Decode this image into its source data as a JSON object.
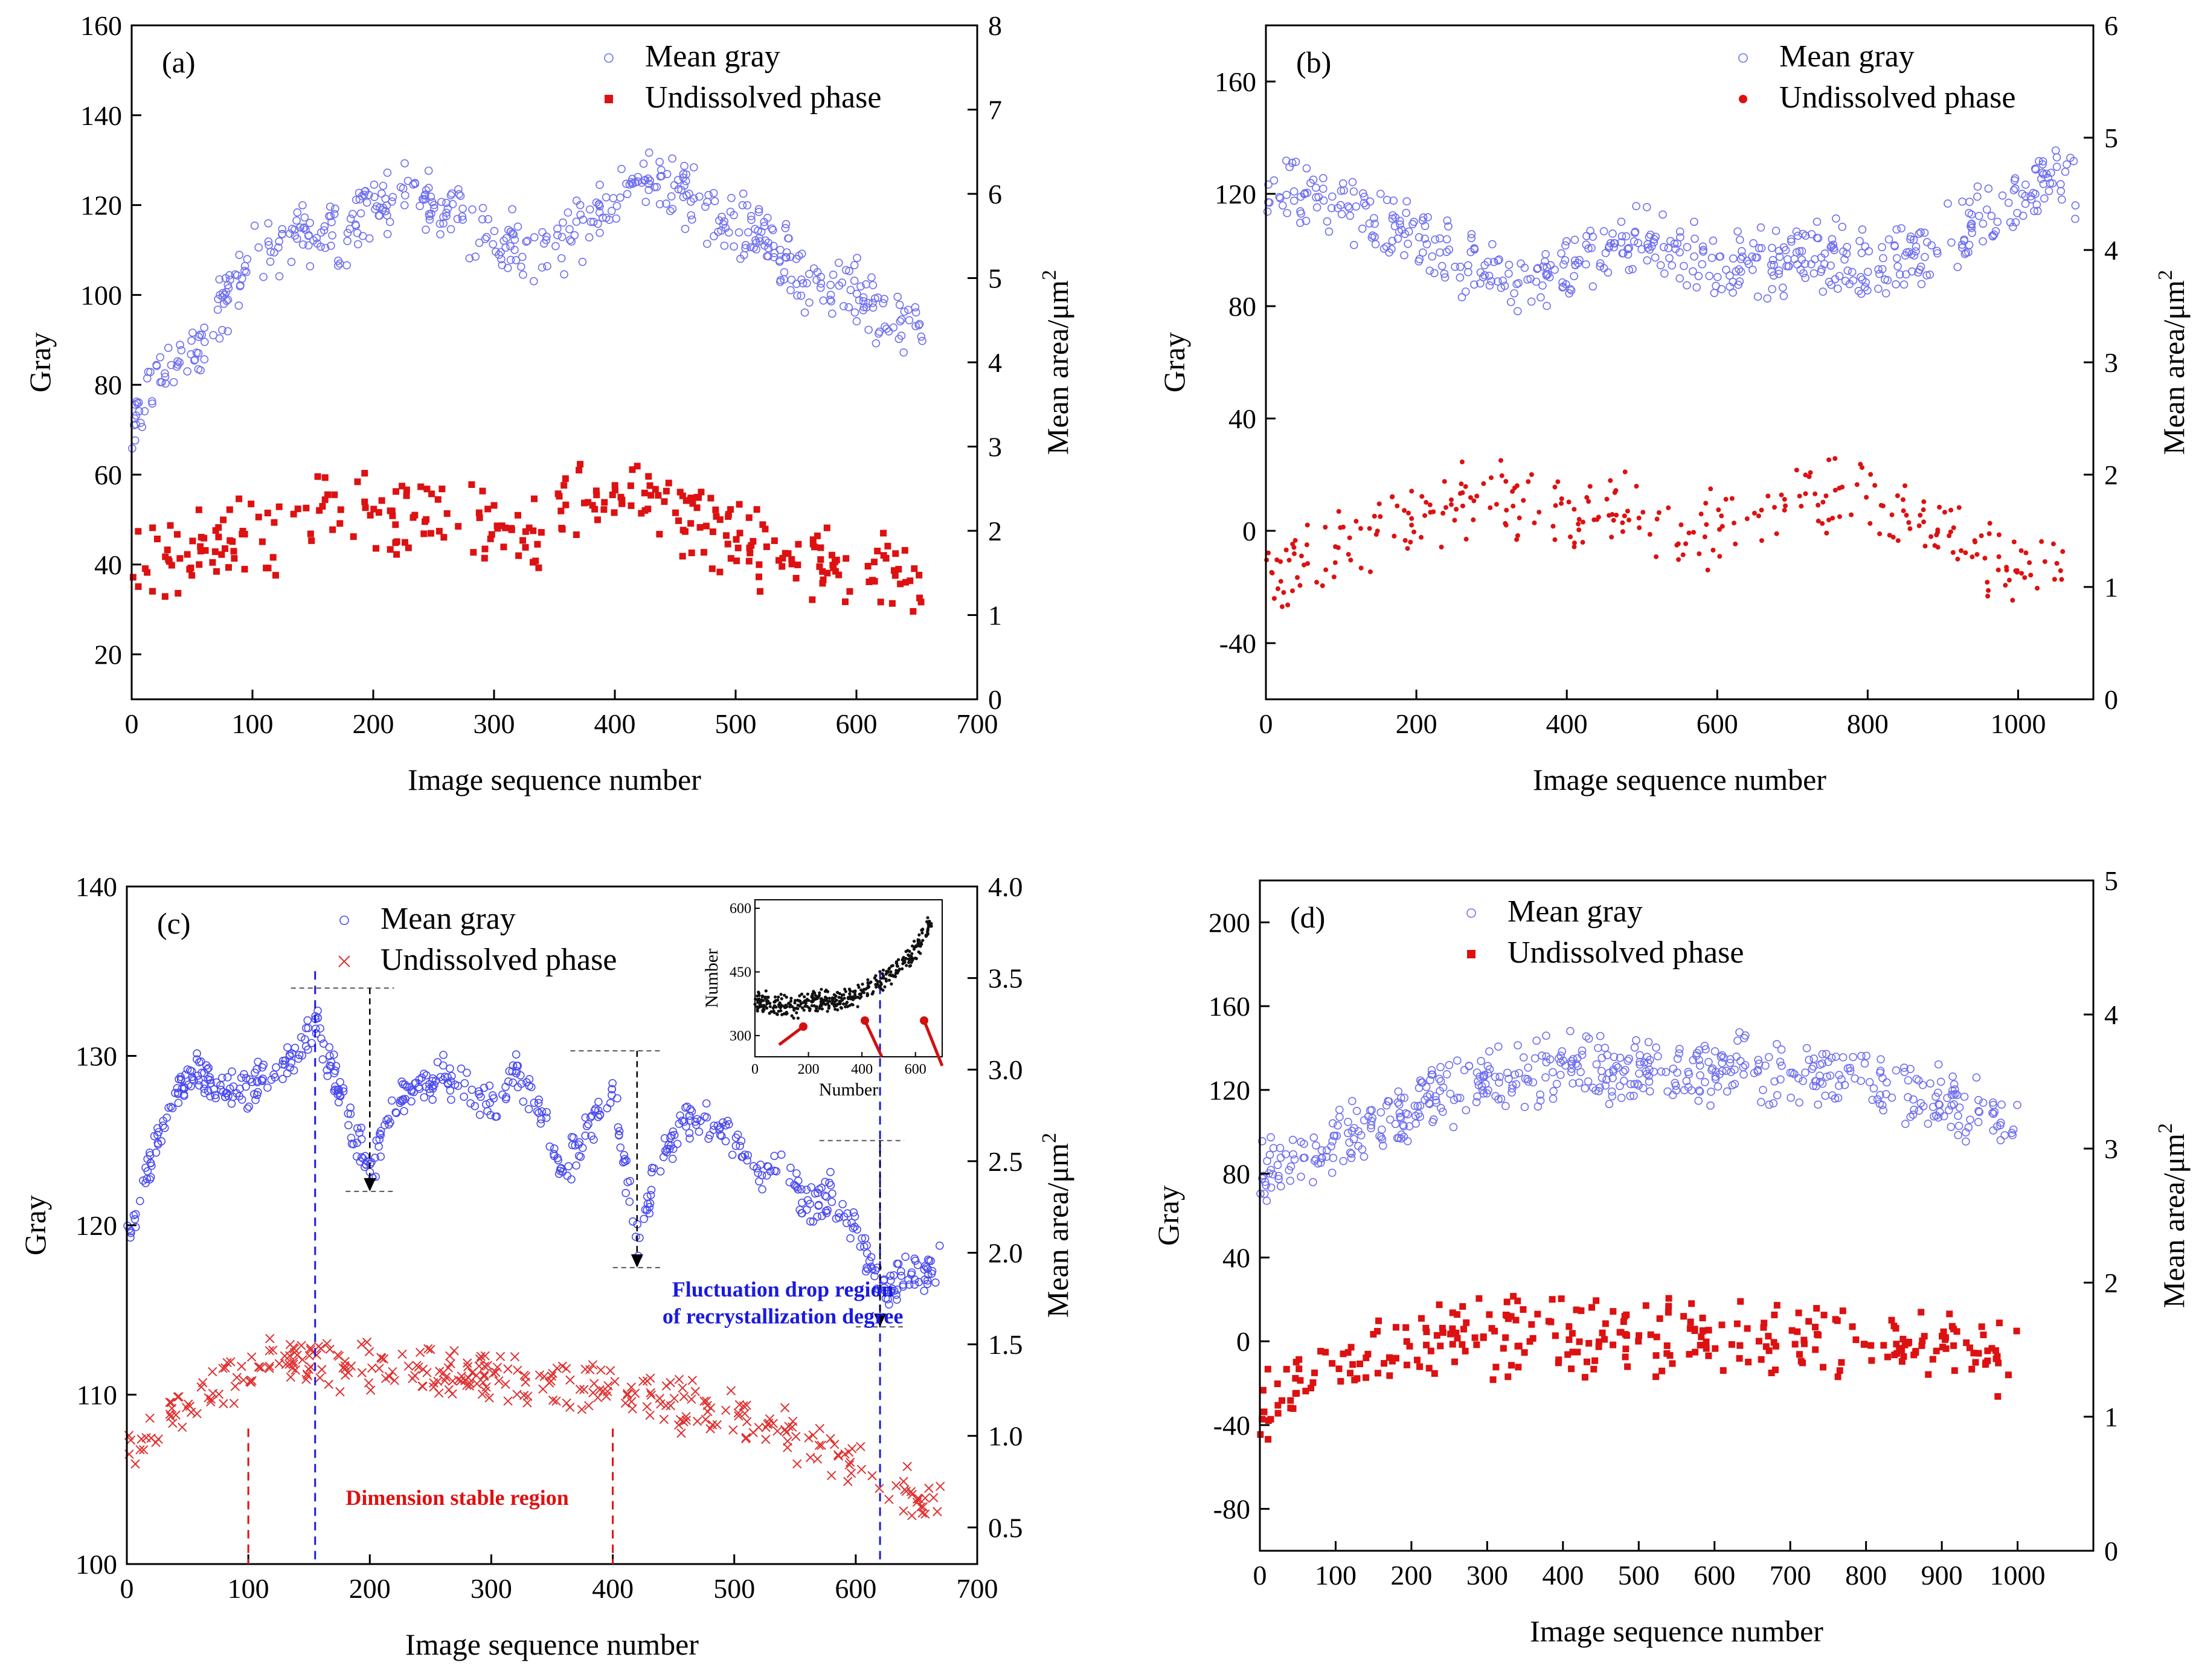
{
  "chart_data": [
    {
      "id": "a",
      "type": "scatter",
      "tag": "(a)",
      "xlabel": "Image sequence number",
      "ylabel": "Gray",
      "y2label": "Mean area/μm",
      "y2label_sup": "2",
      "xlim": [
        0,
        700
      ],
      "ylim": [
        10,
        160
      ],
      "y2lim": [
        0,
        8
      ],
      "xticks": [
        "0",
        "100",
        "200",
        "300",
        "400",
        "500",
        "600",
        "700"
      ],
      "yticks": [
        "20",
        "40",
        "60",
        "80",
        "100",
        "120",
        "140",
        "160"
      ],
      "y2ticks": [
        "0",
        "1",
        "2",
        "3",
        "4",
        "5",
        "6",
        "7",
        "8"
      ],
      "legend": [
        "Mean gray",
        "Undissolved phase"
      ],
      "series": [
        {
          "name": "Mean gray",
          "axis": "left",
          "color": "#6f6ff0",
          "marker": "circle",
          "x": [
            0,
            20,
            40,
            60,
            80,
            100,
            120,
            140,
            160,
            180,
            200,
            220,
            240,
            260,
            280,
            300,
            320,
            340,
            360,
            380,
            400,
            420,
            440,
            460,
            480,
            500,
            520,
            540,
            560,
            580,
            600,
            620,
            640,
            655
          ],
          "y": [
            74,
            80,
            86,
            92,
            100,
            108,
            112,
            114,
            112,
            115,
            118,
            124,
            122,
            120,
            116,
            112,
            110,
            110,
            112,
            116,
            122,
            126,
            126,
            122,
            118,
            116,
            114,
            108,
            104,
            102,
            100,
            96,
            92,
            90
          ]
        },
        {
          "name": "Undissolved phase",
          "axis": "right",
          "color": "#dd1111",
          "marker": "square",
          "x": [
            0,
            20,
            40,
            60,
            80,
            100,
            120,
            140,
            160,
            180,
            200,
            220,
            240,
            260,
            280,
            300,
            320,
            340,
            360,
            380,
            400,
            420,
            440,
            460,
            480,
            500,
            520,
            540,
            560,
            580,
            600,
            620,
            640,
            655
          ],
          "y": [
            1.7,
            1.6,
            1.7,
            1.8,
            1.8,
            1.9,
            2.0,
            2.2,
            2.3,
            2.3,
            2.2,
            2.2,
            2.1,
            2.2,
            2.1,
            2.0,
            2.0,
            2.1,
            2.2,
            2.4,
            2.5,
            2.4,
            2.3,
            2.1,
            2.0,
            1.9,
            1.8,
            1.7,
            1.7,
            1.6,
            1.5,
            1.5,
            1.5,
            1.4
          ]
        }
      ]
    },
    {
      "id": "b",
      "type": "scatter",
      "tag": "(b)",
      "xlabel": "Image sequence number",
      "ylabel": "Gray",
      "y2label": "Mean area/μm",
      "y2label_sup": "2",
      "xlim": [
        0,
        1100
      ],
      "ylim": [
        -60,
        180
      ],
      "y2lim": [
        0,
        6
      ],
      "xticks": [
        "0",
        "200",
        "400",
        "600",
        "800",
        "1000"
      ],
      "yticks": [
        "-40",
        "0",
        "40",
        "80",
        "120",
        "160"
      ],
      "y2ticks": [
        "0",
        "1",
        "2",
        "3",
        "4",
        "5",
        "6"
      ],
      "legend": [
        "Mean gray",
        "Undissolved phase"
      ],
      "series": [
        {
          "name": "Mean gray",
          "axis": "left",
          "color": "#6f6ff0",
          "marker": "circle",
          "x": [
            0,
            40,
            80,
            120,
            160,
            200,
            240,
            280,
            320,
            360,
            400,
            440,
            480,
            520,
            560,
            600,
            640,
            680,
            720,
            760,
            800,
            840,
            880,
            920,
            960,
            1000,
            1040,
            1080
          ],
          "y": [
            118,
            122,
            118,
            114,
            108,
            104,
            98,
            92,
            88,
            90,
            94,
            98,
            104,
            102,
            98,
            96,
            94,
            96,
            98,
            98,
            94,
            96,
            100,
            106,
            112,
            118,
            124,
            124
          ]
        },
        {
          "name": "Undissolved phase",
          "axis": "right",
          "color": "#dd1111",
          "marker": "dot",
          "x": [
            0,
            40,
            80,
            120,
            160,
            200,
            240,
            280,
            320,
            360,
            400,
            440,
            480,
            520,
            560,
            600,
            640,
            680,
            720,
            760,
            800,
            840,
            880,
            920,
            960,
            1000,
            1040,
            1060
          ],
          "y": [
            1.1,
            1.2,
            1.3,
            1.4,
            1.5,
            1.6,
            1.7,
            1.8,
            1.8,
            1.7,
            1.6,
            1.6,
            1.7,
            1.6,
            1.5,
            1.5,
            1.6,
            1.7,
            1.8,
            1.8,
            1.8,
            1.7,
            1.6,
            1.5,
            1.3,
            1.2,
            1.1,
            1.0
          ]
        }
      ]
    },
    {
      "id": "c",
      "type": "scatter",
      "tag": "(c)",
      "xlabel": "Image sequence number",
      "ylabel": "Gray",
      "y2label": "Mean area/μm",
      "y2label_sup": "2",
      "xlim": [
        0,
        700
      ],
      "ylim": [
        100,
        140
      ],
      "y2lim": [
        0.3,
        4.0
      ],
      "xticks": [
        "0",
        "100",
        "200",
        "300",
        "400",
        "500",
        "600",
        "700"
      ],
      "yticks": [
        "100",
        "110",
        "120",
        "130",
        "140"
      ],
      "y2ticks": [
        "0.5",
        "1.0",
        "1.5",
        "2.0",
        "2.5",
        "3.0",
        "3.5",
        "4.0"
      ],
      "legend": [
        "Mean gray",
        "Undissolved phase"
      ],
      "annotations": {
        "blue_text_line1": "Fluctuation drop region",
        "blue_text_line2": "of recrystallization degree",
        "red_text": "Dimension stable region"
      },
      "inset": {
        "xlabel": "Number",
        "ylabel": "Number",
        "xlim": [
          0,
          700
        ],
        "ylim": [
          250,
          620
        ],
        "xticks": [
          "0",
          "200",
          "400",
          "600"
        ],
        "yticks": [
          "300",
          "450",
          "600"
        ],
        "x": [
          0,
          50,
          100,
          150,
          200,
          250,
          300,
          350,
          400,
          450,
          500,
          550,
          600,
          650
        ],
        "y": [
          380,
          375,
          370,
          365,
          375,
          385,
          380,
          390,
          400,
          420,
          440,
          470,
          500,
          560
        ]
      },
      "series": [
        {
          "name": "Mean gray",
          "axis": "left",
          "color": "#4a4aef",
          "marker": "circle",
          "x": [
            0,
            20,
            40,
            60,
            80,
            100,
            120,
            140,
            155,
            170,
            185,
            200,
            220,
            240,
            260,
            280,
            300,
            320,
            340,
            360,
            380,
            400,
            420,
            440,
            460,
            480,
            500,
            520,
            540,
            560,
            580,
            600,
            620,
            640,
            660,
            670
          ],
          "y": [
            119,
            124,
            128,
            129,
            128,
            128,
            129,
            130,
            132,
            129,
            126,
            123,
            127,
            128,
            129,
            128,
            127,
            129,
            127,
            123,
            126,
            128,
            119,
            124,
            126,
            126,
            125,
            123,
            124,
            121,
            122,
            120,
            116,
            117,
            117,
            118
          ]
        },
        {
          "name": "Undissolved phase",
          "axis": "right",
          "color": "#e03030",
          "marker": "cross",
          "x": [
            0,
            20,
            40,
            60,
            80,
            100,
            120,
            140,
            160,
            180,
            200,
            220,
            240,
            260,
            280,
            300,
            320,
            340,
            360,
            380,
            400,
            420,
            440,
            460,
            480,
            500,
            520,
            540,
            560,
            580,
            600,
            620,
            640,
            660,
            670
          ],
          "y": [
            0.9,
            1.0,
            1.1,
            1.2,
            1.3,
            1.35,
            1.4,
            1.4,
            1.4,
            1.38,
            1.36,
            1.35,
            1.35,
            1.34,
            1.33,
            1.32,
            1.3,
            1.3,
            1.28,
            1.27,
            1.25,
            1.22,
            1.2,
            1.17,
            1.14,
            1.1,
            1.06,
            1.0,
            0.94,
            0.88,
            0.82,
            0.76,
            0.7,
            0.64,
            0.62
          ]
        }
      ]
    },
    {
      "id": "d",
      "type": "scatter",
      "tag": "(d)",
      "xlabel": "Image sequence number",
      "ylabel": "Gray",
      "y2label": "Mean area/μm",
      "y2label_sup": "2",
      "xlim": [
        0,
        1100
      ],
      "ylim": [
        -100,
        220
      ],
      "y2lim": [
        0,
        5
      ],
      "xticks": [
        "0",
        "100",
        "200",
        "300",
        "400",
        "500",
        "600",
        "700",
        "800",
        "900",
        "1000"
      ],
      "yticks": [
        "-80",
        "-40",
        "0",
        "40",
        "80",
        "120",
        "160",
        "200"
      ],
      "y2ticks": [
        "0",
        "1",
        "2",
        "3",
        "4",
        "5"
      ],
      "legend": [
        "Mean gray",
        "Undissolved phase"
      ],
      "series": [
        {
          "name": "Mean gray",
          "axis": "left",
          "color": "#6f6ff0",
          "marker": "circle",
          "x": [
            0,
            40,
            80,
            120,
            160,
            200,
            240,
            280,
            320,
            360,
            400,
            440,
            480,
            520,
            560,
            600,
            640,
            680,
            720,
            760,
            800,
            840,
            880,
            920,
            960,
            1000
          ],
          "y": [
            80,
            84,
            90,
            98,
            104,
            112,
            118,
            122,
            124,
            128,
            132,
            130,
            128,
            128,
            126,
            130,
            132,
            128,
            126,
            126,
            124,
            120,
            118,
            114,
            108,
            100
          ]
        },
        {
          "name": "Undissolved phase",
          "axis": "right",
          "color": "#dd1111",
          "marker": "square",
          "x": [
            0,
            40,
            80,
            120,
            160,
            200,
            240,
            280,
            320,
            360,
            400,
            440,
            480,
            520,
            560,
            600,
            640,
            680,
            720,
            760,
            800,
            840,
            880,
            920,
            960,
            1000
          ],
          "y": [
            1.0,
            1.2,
            1.35,
            1.45,
            1.5,
            1.55,
            1.58,
            1.6,
            1.6,
            1.62,
            1.63,
            1.62,
            1.6,
            1.6,
            1.62,
            1.63,
            1.62,
            1.6,
            1.6,
            1.61,
            1.6,
            1.58,
            1.56,
            1.52,
            1.45,
            1.35
          ]
        }
      ]
    }
  ]
}
